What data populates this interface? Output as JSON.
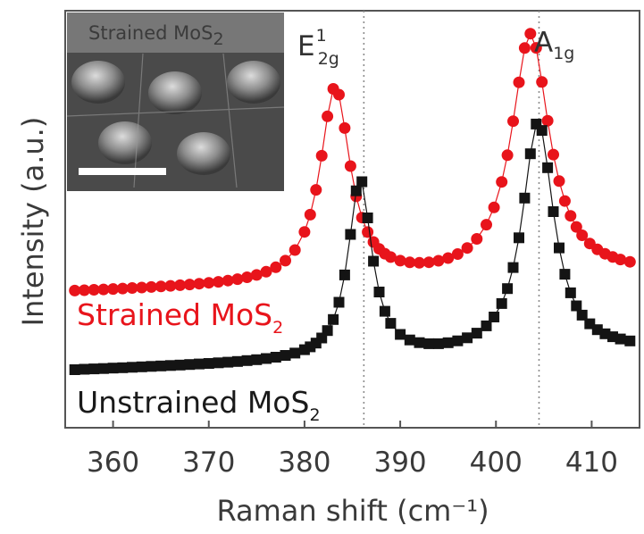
{
  "chart_data": {
    "type": "scatter",
    "xlabel": "Raman shift (cm⁻¹)",
    "ylabel": "Intensity (a.u.)",
    "xlim": [
      355,
      415
    ],
    "x_ticks": [
      360,
      370,
      380,
      390,
      400,
      410
    ],
    "y_ticks_shown": false,
    "series": [
      {
        "name": "Strained MoS₂",
        "label_main": "Strained MoS",
        "label_sub": "2",
        "color": "#e8141b",
        "marker": "circle",
        "peaks": [
          {
            "center": 383.2,
            "amplitude": 0.52,
            "width": 1.9
          },
          {
            "center": 403.6,
            "amplitude": 0.65,
            "width": 2.4
          }
        ],
        "baseline": 0.36,
        "slope": 0.0008
      },
      {
        "name": "Unstrained MoS₂",
        "label_main": "Unstrained MoS",
        "label_sub": "2",
        "color": "#141414",
        "marker": "square",
        "peaks": [
          {
            "center": 385.8,
            "amplitude": 0.48,
            "width": 1.5
          },
          {
            "center": 404.4,
            "amplitude": 0.62,
            "width": 2.0
          }
        ],
        "baseline": 0.15,
        "slope": 0.0009
      }
    ],
    "x_points": [
      356,
      357,
      358,
      359,
      360,
      361,
      362,
      363,
      364,
      365,
      366,
      367,
      368,
      369,
      370,
      371,
      372,
      373,
      374,
      375,
      376,
      377,
      378,
      379,
      380,
      380.6,
      381.2,
      381.8,
      382.4,
      383,
      383.6,
      384.2,
      384.8,
      385.4,
      386,
      386.6,
      387.2,
      387.8,
      388.4,
      389,
      390,
      391,
      392,
      393,
      394,
      395,
      396,
      397,
      398,
      399,
      399.8,
      400.6,
      401.2,
      401.8,
      402.4,
      403,
      403.6,
      404.2,
      404.8,
      405.4,
      406,
      406.6,
      407.2,
      407.8,
      408.4,
      409,
      409.8,
      410.6,
      411.4,
      412.2,
      413,
      414
    ],
    "reference_lines": [
      {
        "name": "E2g1 reference",
        "x": 386.2,
        "label_main": "E",
        "label_sup": "1",
        "label_sub": "2g"
      },
      {
        "name": "A1g reference",
        "x": 404.5,
        "label_main": "A",
        "label_sub": "1g"
      }
    ],
    "inset": {
      "caption_main": "Strained MoS",
      "caption_sub": "2",
      "description": "SEM image of dome-shaped features"
    }
  }
}
